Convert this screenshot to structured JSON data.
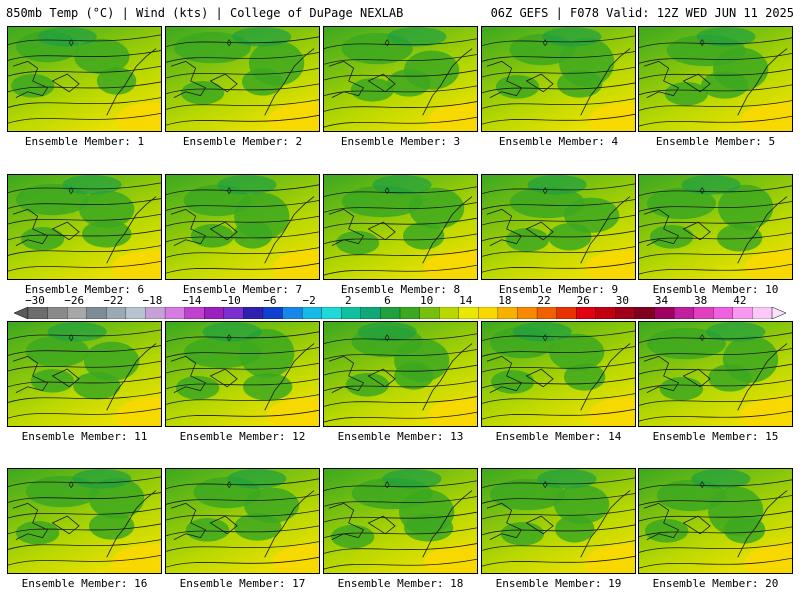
{
  "header": {
    "left": "850mb Temp (°C) | Wind (kts) | College of DuPage NEXLAB",
    "right": "06Z GEFS | F078 Valid: 12Z WED JUN 11 2025"
  },
  "panels": [
    {
      "label": "Ensemble Member: 1"
    },
    {
      "label": "Ensemble Member: 2"
    },
    {
      "label": "Ensemble Member: 3"
    },
    {
      "label": "Ensemble Member: 4"
    },
    {
      "label": "Ensemble Member: 5"
    },
    {
      "label": "Ensemble Member: 6"
    },
    {
      "label": "Ensemble Member: 7"
    },
    {
      "label": "Ensemble Member: 8"
    },
    {
      "label": "Ensemble Member: 9"
    },
    {
      "label": "Ensemble Member: 10"
    },
    {
      "label": "Ensemble Member: 11"
    },
    {
      "label": "Ensemble Member: 12"
    },
    {
      "label": "Ensemble Member: 13"
    },
    {
      "label": "Ensemble Member: 14"
    },
    {
      "label": "Ensemble Member: 15"
    },
    {
      "label": "Ensemble Member: 16"
    },
    {
      "label": "Ensemble Member: 17"
    },
    {
      "label": "Ensemble Member: 18"
    },
    {
      "label": "Ensemble Member: 19"
    },
    {
      "label": "Ensemble Member: 20"
    }
  ],
  "colorbar": {
    "ticks": [
      "−30",
      "−26",
      "−22",
      "−18",
      "−14",
      "−10",
      "−6",
      "−2",
      "2",
      "6",
      "10",
      "14",
      "18",
      "22",
      "26",
      "30",
      "34",
      "38",
      "42"
    ],
    "colors": [
      "#6d6d6d",
      "#8a8a8a",
      "#a7a7a7",
      "#7e8c96",
      "#9aa9b4",
      "#b7c4cf",
      "#c8a0d8",
      "#d67be0",
      "#c040d0",
      "#9a20c0",
      "#7a30d0",
      "#3020b0",
      "#1040d0",
      "#1888e8",
      "#18b8e8",
      "#20d8d8",
      "#10c0a0",
      "#10a878",
      "#20a040",
      "#3ca820",
      "#78c010",
      "#b8d800",
      "#e8e800",
      "#f8d800",
      "#f8b000",
      "#f88800",
      "#f06000",
      "#e83000",
      "#e00010",
      "#c00010",
      "#a00018",
      "#800020",
      "#a00060",
      "#c020a0",
      "#e040c0",
      "#f060e0",
      "#f898f0",
      "#fcc8f8"
    ]
  }
}
